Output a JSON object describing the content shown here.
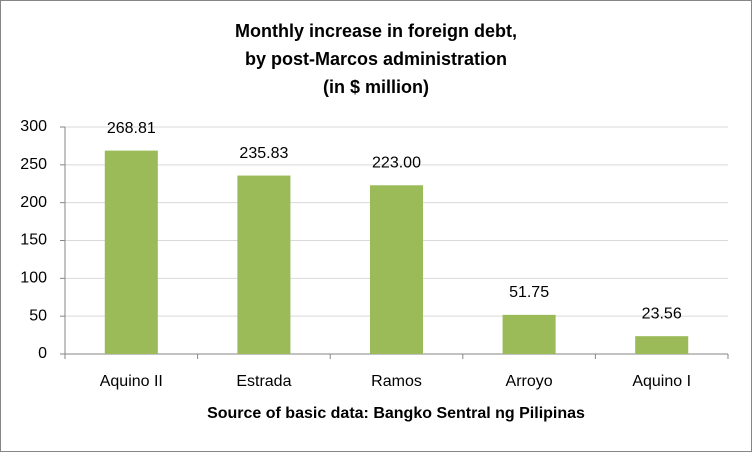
{
  "chart_data": {
    "type": "bar",
    "title": [
      "Monthly increase in foreign debt,",
      "by post-Marcos administration",
      "(in $ million)"
    ],
    "xlabel": "Source of basic data: Bangko Sentral ng Pilipinas",
    "categories": [
      "Aquino II",
      "Estrada",
      "Ramos",
      "Arroyo",
      "Aquino I"
    ],
    "values": [
      268.81,
      235.83,
      223.0,
      51.75,
      23.56
    ],
    "value_labels": [
      "268.81",
      "235.83",
      "223.00",
      "51.75",
      "23.56"
    ],
    "color": "#9bbb59",
    "ylim": [
      0,
      300
    ],
    "yticks": [
      0,
      50,
      100,
      150,
      200,
      250,
      300
    ],
    "grid": true
  }
}
